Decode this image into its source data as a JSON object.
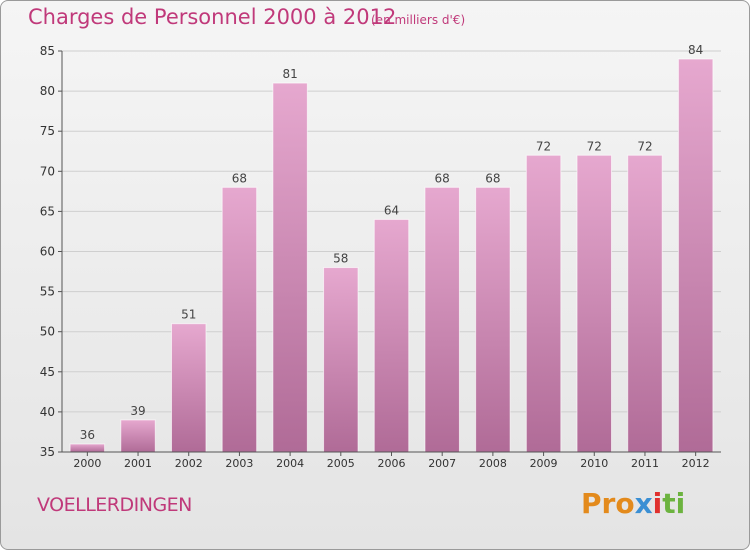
{
  "header": {
    "title": "Charges de Personnel 2000 à 2012",
    "unit": "(en milliers d'€)"
  },
  "footer": {
    "commune": "VOELLERDINGEN",
    "logo_parts": [
      "Pro",
      "x",
      "i",
      "ti"
    ]
  },
  "colors": {
    "title": "#c0397a",
    "bar_top": "#e6a8cf",
    "bar_bottom": "#b06b97",
    "grid": "#cfcfcf",
    "axis": "#555555",
    "logo": [
      "#e38a1c",
      "#3a8fd4",
      "#e0312e",
      "#6cb33f"
    ]
  },
  "chart_data": {
    "type": "bar",
    "title": "Charges de Personnel 2000 à 2012",
    "subtitle": "(en milliers d'€)",
    "xlabel": "",
    "ylabel": "",
    "categories": [
      "2000",
      "2001",
      "2002",
      "2003",
      "2004",
      "2005",
      "2006",
      "2007",
      "2008",
      "2009",
      "2010",
      "2011",
      "2012"
    ],
    "values": [
      36,
      39,
      51,
      68,
      81,
      58,
      64,
      68,
      68,
      72,
      72,
      72,
      84
    ],
    "ylim": [
      35,
      85
    ],
    "yticks": [
      35,
      40,
      45,
      50,
      55,
      60,
      65,
      70,
      75,
      80,
      85
    ],
    "grid": true,
    "legend": "none"
  }
}
